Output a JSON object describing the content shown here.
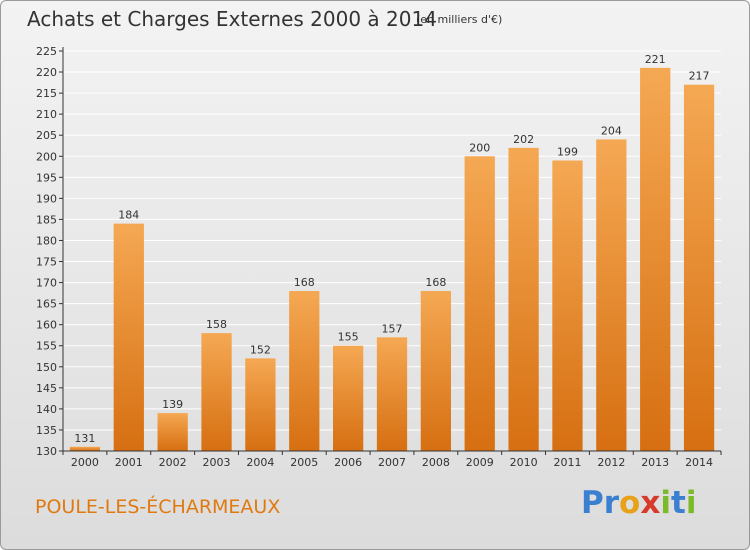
{
  "title": "Achats et Charges Externes 2000 à 2014",
  "subtitle": "(en milliers d'€)",
  "commune": "POULE-LES-ÉCHARMEAUX",
  "logo": {
    "text": "Proxiti",
    "letters": [
      {
        "char": "P",
        "color": "#3a7fd0"
      },
      {
        "char": "r",
        "color": "#3a7fd0"
      },
      {
        "char": "o",
        "color": "#e8a21a"
      },
      {
        "char": "x",
        "color": "#d63a2a"
      },
      {
        "char": "i",
        "color": "#7cba2c"
      },
      {
        "char": "t",
        "color": "#3a7fd0"
      },
      {
        "char": "i",
        "color": "#7cba2c"
      }
    ]
  },
  "colors": {
    "bar_top": "#f5a853",
    "bar_bottom": "#d66f11",
    "grid": "#ffffff",
    "axis": "#333333",
    "text": "#333333"
  },
  "chart_data": {
    "type": "bar",
    "categories": [
      "2000",
      "2001",
      "2002",
      "2003",
      "2004",
      "2005",
      "2006",
      "2007",
      "2008",
      "2009",
      "2010",
      "2011",
      "2012",
      "2013",
      "2014"
    ],
    "values": [
      131,
      184,
      139,
      158,
      152,
      168,
      155,
      157,
      168,
      200,
      202,
      199,
      204,
      221,
      217
    ],
    "ylim": [
      130,
      225
    ],
    "yticks": [
      130,
      135,
      140,
      145,
      150,
      155,
      160,
      165,
      170,
      175,
      180,
      185,
      190,
      195,
      200,
      205,
      210,
      215,
      220,
      225
    ],
    "grid": true,
    "data_labels": true
  }
}
